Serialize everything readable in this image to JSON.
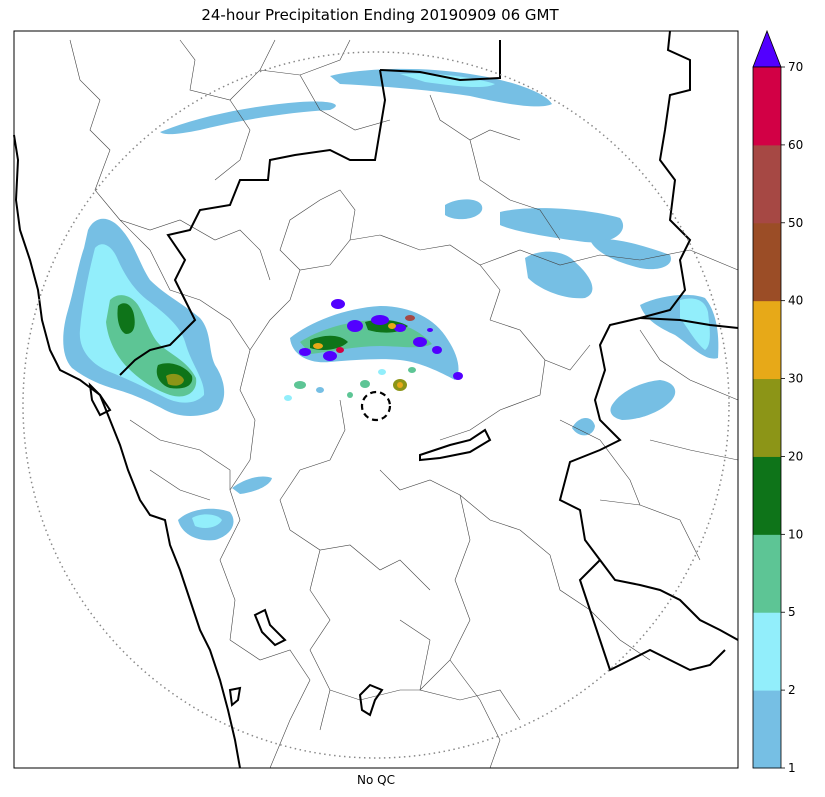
{
  "title": "24-hour Precipitation Ending 20190909 06 GMT",
  "xlabel": "No QC",
  "colorbar": {
    "levels": [
      1,
      2,
      5,
      10,
      20,
      30,
      40,
      50,
      60,
      70
    ],
    "tick_labels": [
      "1",
      "2",
      "5",
      "10",
      "20",
      "30",
      "40",
      "50",
      "60",
      "70"
    ],
    "colors": [
      "#76bfe4",
      "#92eefb",
      "#5dc595",
      "#0e7419",
      "#8c9517",
      "#e7a918",
      "#9b4d26",
      "#a64844",
      "#d20045"
    ],
    "extend_color": "#5200ff"
  },
  "map_colors": {
    "border_thick": "#000000",
    "border_thin": "#444444",
    "range_ring": "#888888",
    "radar_site": "#000000"
  }
}
